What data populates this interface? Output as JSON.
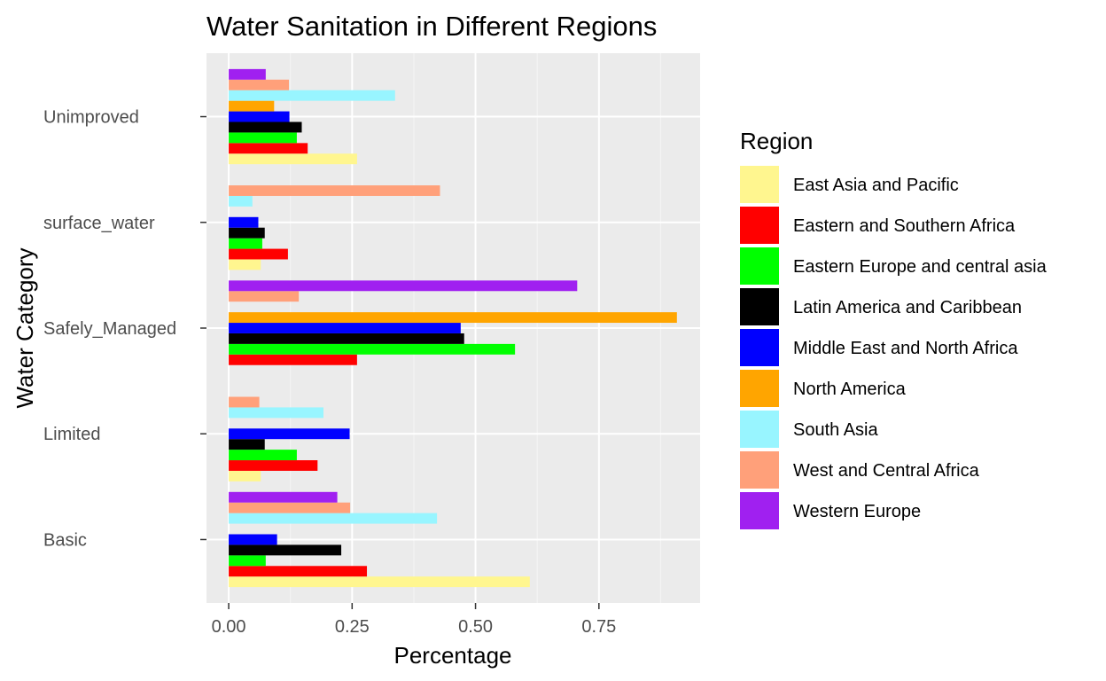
{
  "chart_data": {
    "type": "bar",
    "orientation": "horizontal",
    "title": "Water Sanitation in Different Regions",
    "xlabel": "Percentage",
    "ylabel": "Water Category",
    "xlim": [
      -0.045,
      0.955
    ],
    "xticks": [
      0.0,
      0.25,
      0.5,
      0.75
    ],
    "xtick_labels": [
      "0.00",
      "0.25",
      "0.50",
      "0.75"
    ],
    "categories": [
      "Basic",
      "Limited",
      "Safely_Managed",
      "surface_water",
      "Unimproved"
    ],
    "legend": {
      "title": "Region",
      "placement": "right"
    },
    "grid": true,
    "series": [
      {
        "name": "East Asia and Pacific",
        "color": "#FFF68F",
        "values": [
          0.61,
          0.065,
          null,
          0.065,
          0.26
        ]
      },
      {
        "name": "Eastern and Southern Africa",
        "color": "#FF0000",
        "values": [
          0.28,
          0.18,
          0.26,
          0.12,
          0.16
        ]
      },
      {
        "name": "Eastern Europe and central asia",
        "color": "#00FF00",
        "values": [
          0.075,
          0.138,
          0.58,
          0.068,
          0.138
        ]
      },
      {
        "name": "Latin America and Caribbean",
        "color": "#000000",
        "values": [
          0.228,
          0.073,
          0.477,
          0.073,
          0.148
        ]
      },
      {
        "name": "Middle East and North Africa",
        "color": "#0000FF",
        "values": [
          0.098,
          0.245,
          0.47,
          0.06,
          0.123
        ]
      },
      {
        "name": "North America",
        "color": "#FFA500",
        "values": [
          null,
          null,
          0.908,
          null,
          0.092
        ]
      },
      {
        "name": "South Asia",
        "color": "#98F5FF",
        "values": [
          0.422,
          0.192,
          null,
          0.048,
          0.337
        ]
      },
      {
        "name": "West and Central Africa",
        "color": "#FFA07A",
        "values": [
          0.246,
          0.062,
          0.142,
          0.428,
          0.122
        ]
      },
      {
        "name": "Western Europe",
        "color": "#A020F0",
        "values": [
          0.22,
          null,
          0.706,
          null,
          0.075
        ]
      }
    ]
  }
}
